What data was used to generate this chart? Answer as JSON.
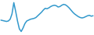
{
  "x": [
    0,
    1,
    2,
    3,
    4,
    5,
    6,
    7,
    8,
    9,
    10,
    11,
    12,
    13,
    14,
    15,
    16,
    17,
    18,
    19,
    20,
    21,
    22,
    23,
    24,
    25,
    26,
    27,
    28,
    29,
    30,
    31,
    32,
    33,
    34,
    35,
    36,
    37,
    38,
    39,
    40,
    41,
    42,
    43,
    44,
    45,
    46,
    47,
    48,
    49,
    50
  ],
  "y": [
    0.2,
    0.15,
    0.1,
    0.05,
    0.1,
    0.3,
    0.9,
    2.2,
    1.2,
    0.1,
    -0.8,
    -1.1,
    -0.7,
    -0.2,
    0.1,
    0.2,
    0.3,
    0.35,
    0.4,
    0.5,
    0.7,
    0.9,
    1.1,
    1.35,
    1.55,
    1.5,
    1.6,
    1.75,
    1.85,
    1.9,
    1.85,
    1.7,
    1.75,
    1.9,
    2.0,
    1.95,
    1.8,
    1.6,
    1.35,
    1.1,
    0.9,
    0.75,
    0.6,
    0.5,
    0.45,
    0.5,
    0.6,
    0.7,
    0.75,
    0.65,
    0.7
  ],
  "line_color": "#3399cc",
  "line_width": 1.1,
  "background_color": "#ffffff",
  "ylim": [
    -1.5,
    2.5
  ]
}
